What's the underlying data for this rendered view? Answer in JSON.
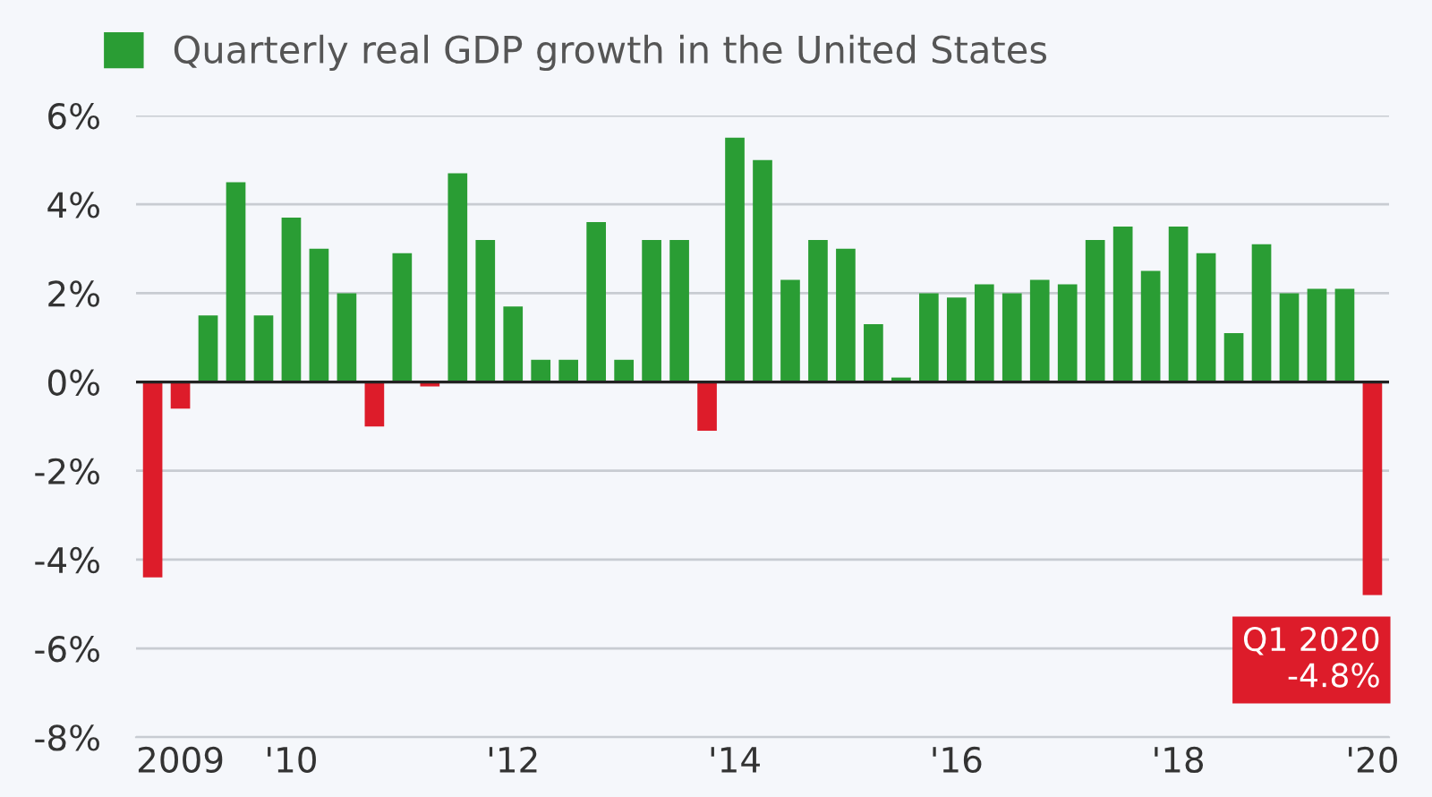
{
  "chart_data": {
    "type": "bar",
    "categories": [
      null,
      "2009",
      null,
      null,
      null,
      "'10",
      null,
      null,
      null,
      null,
      null,
      null,
      null,
      "'12",
      null,
      null,
      null,
      null,
      null,
      null,
      null,
      "'14",
      null,
      null,
      null,
      null,
      null,
      null,
      null,
      "'16",
      null,
      null,
      null,
      null,
      null,
      null,
      null,
      "'18",
      null,
      null,
      null,
      null,
      null,
      null,
      "'20"
    ],
    "series": [
      {
        "name": "Quarterly real GDP growth in the United States",
        "color": "#2a9d34",
        "values": [
          -4.4,
          -0.6,
          1.5,
          4.5,
          1.5,
          3.7,
          3.0,
          2.0,
          -1.0,
          2.9,
          -0.1,
          4.7,
          3.2,
          1.7,
          0.5,
          0.5,
          3.6,
          0.5,
          3.2,
          3.2,
          -1.1,
          5.5,
          5.0,
          2.3,
          3.2,
          3.0,
          1.3,
          0.1,
          2.0,
          1.9,
          2.2,
          2.0,
          2.3,
          2.2,
          3.2,
          3.5,
          2.5,
          3.5,
          2.9,
          1.1,
          3.1,
          2.0,
          2.1,
          2.1,
          -4.8
        ],
        "colors": [
          "#dd1c2a",
          "#dd1c2a",
          "#2a9d34",
          "#2a9d34",
          "#2a9d34",
          "#2a9d34",
          "#2a9d34",
          "#2a9d34",
          "#dd1c2a",
          "#2a9d34",
          "#dd1c2a",
          "#2a9d34",
          "#2a9d34",
          "#2a9d34",
          "#2a9d34",
          "#2a9d34",
          "#2a9d34",
          "#2a9d34",
          "#2a9d34",
          "#2a9d34",
          "#dd1c2a",
          "#2a9d34",
          "#2a9d34",
          "#2a9d34",
          "#2a9d34",
          "#2a9d34",
          "#2a9d34",
          "#2a9d34",
          "#2a9d34",
          "#2a9d34",
          "#2a9d34",
          "#2a9d34",
          "#2a9d34",
          "#2a9d34",
          "#2a9d34",
          "#2a9d34",
          "#2a9d34",
          "#2a9d34",
          "#2a9d34",
          "#2a9d34",
          "#2a9d34",
          "#2a9d34",
          "#2a9d34",
          "#2a9d34",
          "#dd1c2a"
        ]
      }
    ],
    "ylim": [
      -8,
      6
    ],
    "yticks": [
      {
        "value": -8,
        "label": "-8%"
      },
      {
        "value": -6,
        "label": "-6%"
      },
      {
        "value": -4,
        "label": "-4%"
      },
      {
        "value": -2,
        "label": "-2%"
      },
      {
        "value": 0,
        "label": "0%"
      },
      {
        "value": 2,
        "label": "2%"
      },
      {
        "value": 4,
        "label": "4%"
      },
      {
        "value": 6,
        "label": "6%"
      }
    ],
    "grid": "y",
    "legend": "top left",
    "annotations": [
      "Q1 2020\n-4.8%"
    ]
  }
}
